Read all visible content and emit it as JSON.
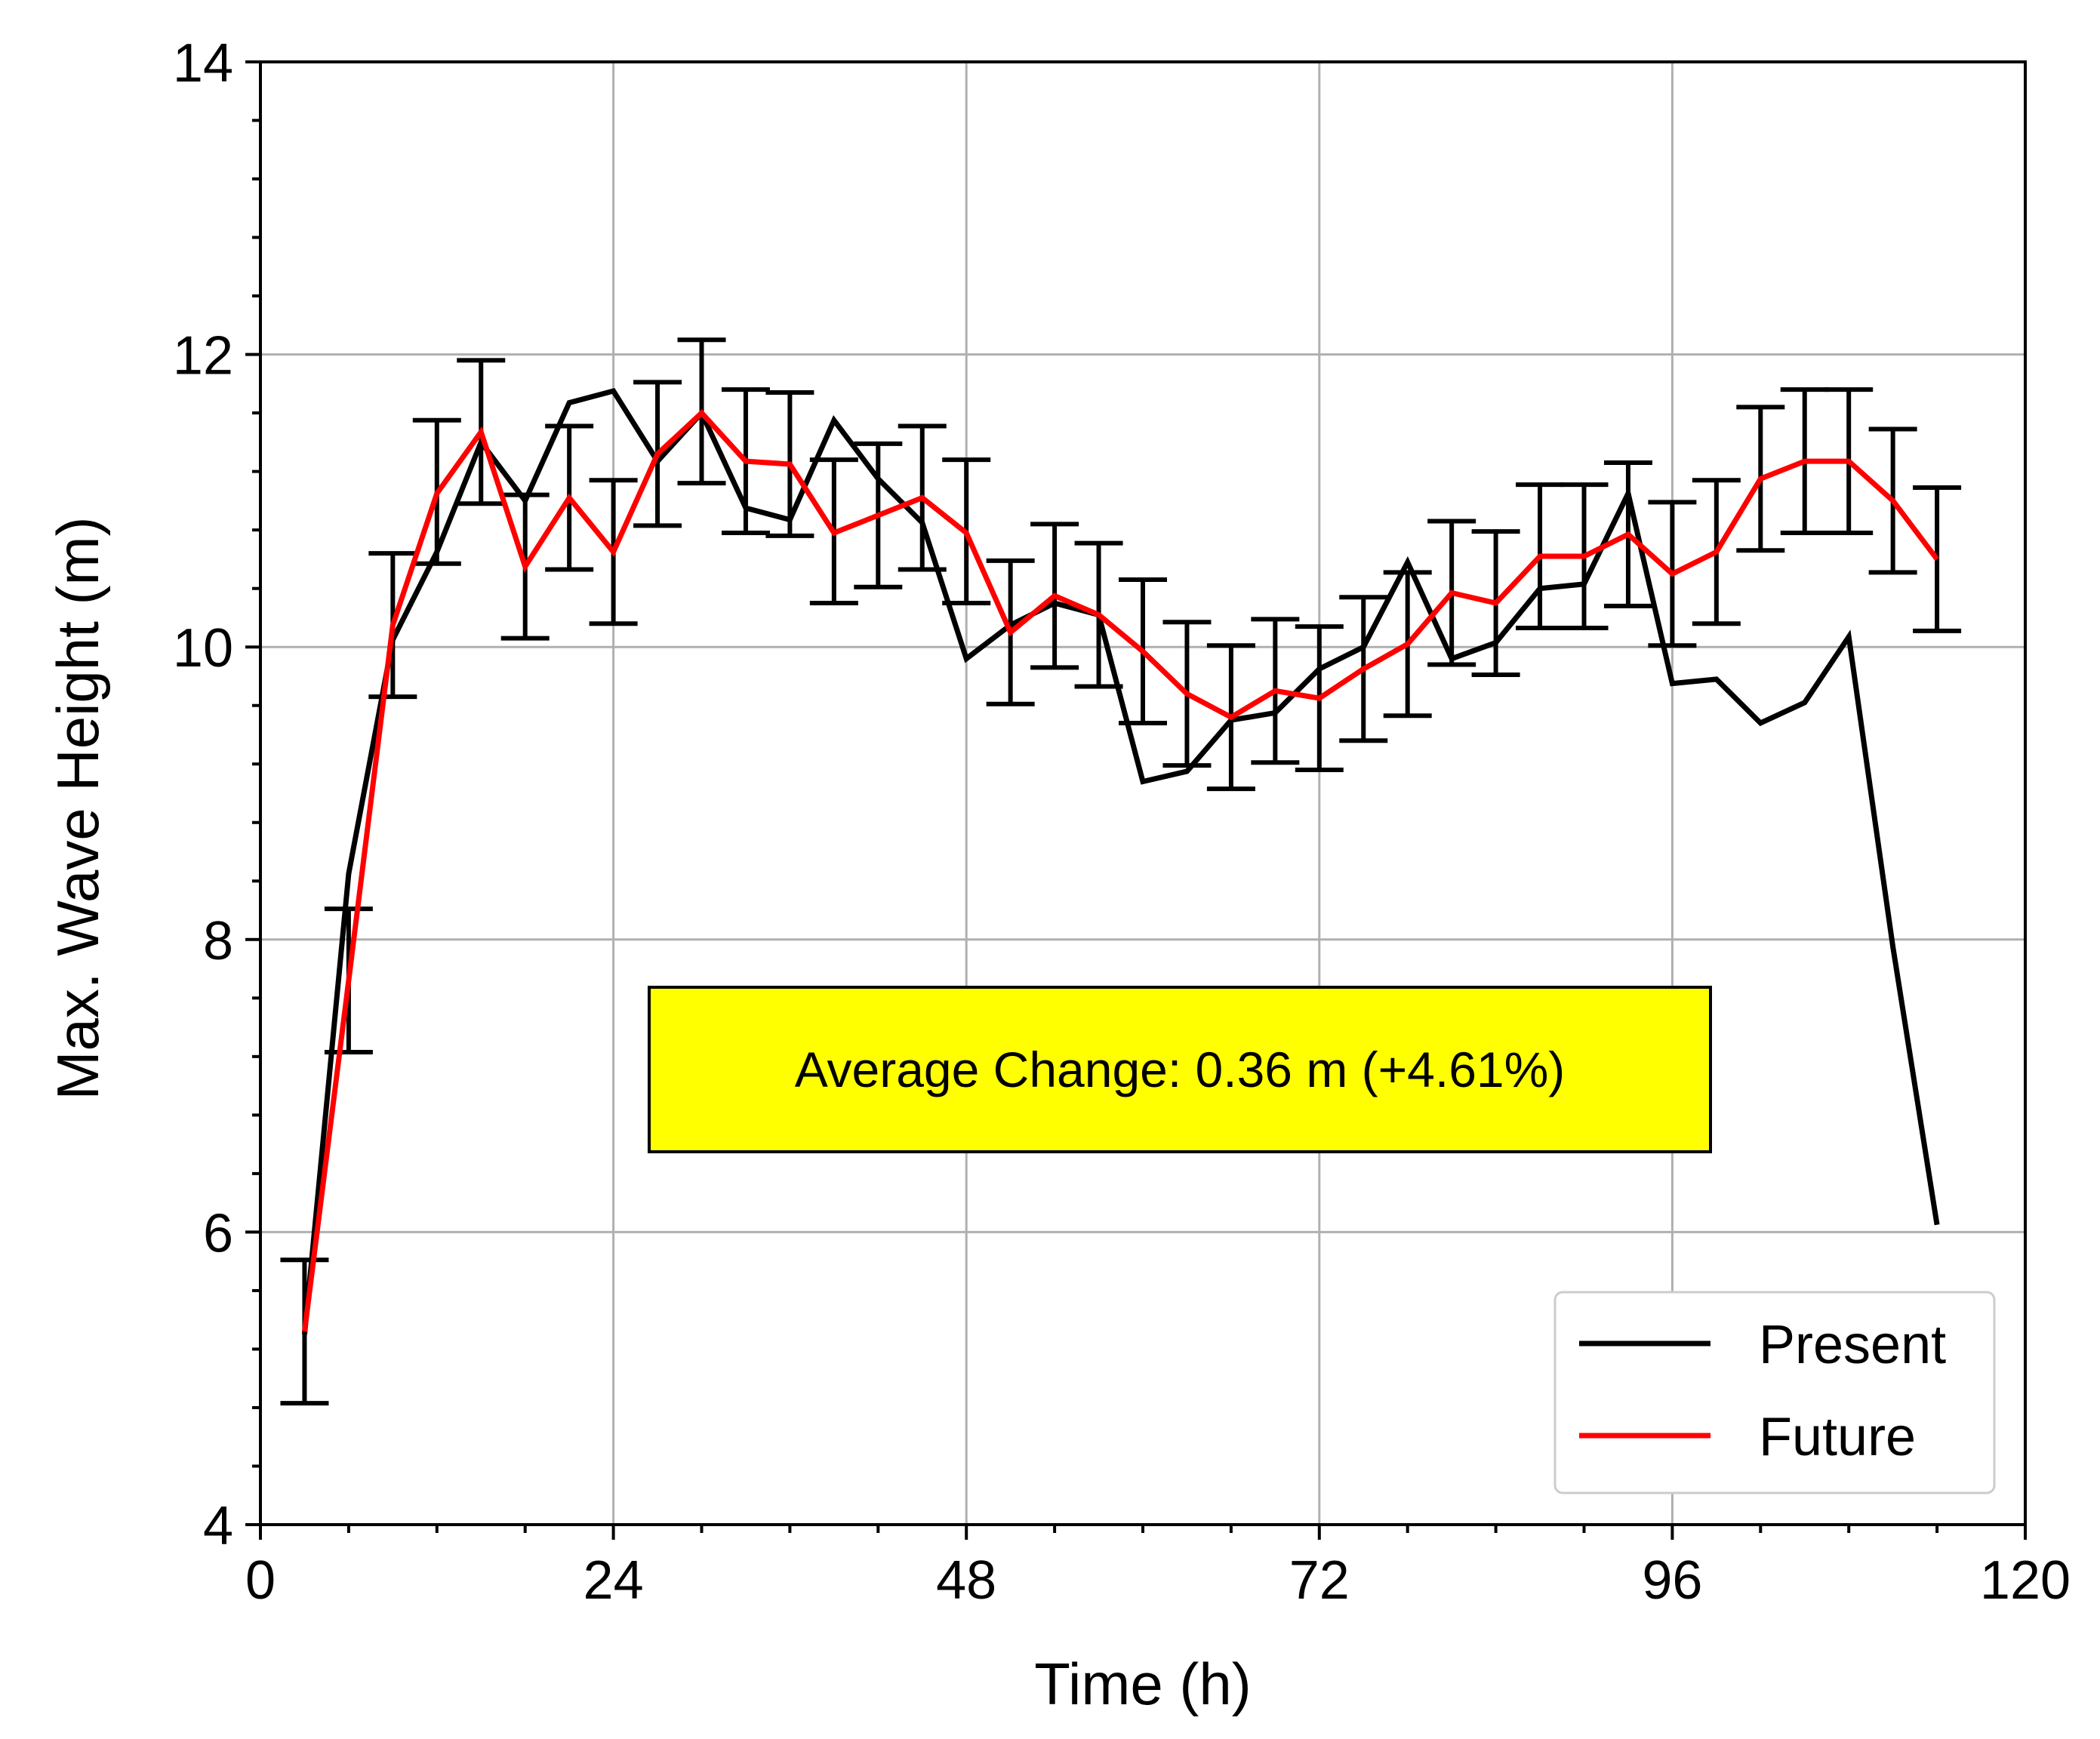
{
  "chart_data": {
    "type": "line",
    "title": "",
    "xlabel": "Time (h)",
    "ylabel": "Max. Wave Height (m)",
    "xlim": [
      0,
      120
    ],
    "ylim": [
      4,
      14
    ],
    "xticks": [
      0,
      24,
      48,
      72,
      96,
      120
    ],
    "yticks": [
      4,
      6,
      8,
      10,
      12,
      14
    ],
    "grid": true,
    "legend_position": "bottom-right",
    "annotation": "Average Change: 0.36 m (+4.61%)",
    "x": [
      3,
      6,
      9,
      12,
      15,
      18,
      21,
      24,
      27,
      30,
      33,
      36,
      39,
      42,
      45,
      48,
      51,
      54,
      57,
      60,
      63,
      66,
      69,
      72,
      75,
      78,
      81,
      84,
      87,
      90,
      93,
      96,
      99,
      102,
      105,
      108,
      111,
      114
    ],
    "series": [
      {
        "name": "Present",
        "color": "#000000",
        "values": [
          5.3,
          8.45,
          10.05,
          10.65,
          11.4,
          11.0,
          11.67,
          11.75,
          11.27,
          11.6,
          10.95,
          10.87,
          11.55,
          11.15,
          10.85,
          9.92,
          10.15,
          10.3,
          10.22,
          9.08,
          9.15,
          9.5,
          9.55,
          9.85,
          10.0,
          10.58,
          9.92,
          10.03,
          10.4,
          10.43,
          11.05,
          9.75,
          9.78,
          9.48,
          9.62,
          10.07,
          7.95,
          6.05
        ]
      },
      {
        "name": "Future",
        "color": "#ff0000",
        "values": [
          5.32,
          7.72,
          10.15,
          11.05,
          11.47,
          10.55,
          11.02,
          10.65,
          11.32,
          11.6,
          11.27,
          11.25,
          10.78,
          10.9,
          11.02,
          10.78,
          10.1,
          10.35,
          10.22,
          9.97,
          9.68,
          9.52,
          9.7,
          9.65,
          9.85,
          10.02,
          10.37,
          10.3,
          10.62,
          10.62,
          10.77,
          10.5,
          10.65,
          11.15,
          11.27,
          11.27,
          11.0,
          10.6
        ]
      }
    ],
    "error_bars": {
      "series": "Future",
      "x": [
        3,
        6,
        9,
        12,
        15,
        18,
        21,
        24,
        27,
        30,
        33,
        36,
        39,
        42,
        45,
        48,
        51,
        54,
        57,
        60,
        63,
        66,
        69,
        72,
        75,
        78,
        81,
        84,
        87,
        90,
        93,
        96,
        99,
        102,
        105,
        108,
        111,
        114
      ],
      "lower": [
        4.83,
        7.23,
        9.66,
        10.57,
        10.98,
        10.06,
        10.53,
        10.16,
        10.83,
        11.12,
        10.78,
        10.76,
        10.3,
        10.41,
        10.53,
        10.3,
        9.61,
        9.86,
        9.73,
        9.48,
        9.19,
        9.03,
        9.21,
        9.16,
        9.36,
        9.53,
        9.88,
        9.81,
        10.13,
        10.13,
        10.28,
        10.01,
        10.16,
        10.66,
        10.78,
        10.78,
        10.51,
        10.11
      ],
      "upper": [
        5.81,
        8.21,
        10.64,
        11.55,
        11.96,
        11.04,
        11.51,
        11.14,
        11.81,
        12.1,
        11.76,
        11.74,
        11.28,
        11.39,
        11.51,
        11.28,
        10.59,
        10.84,
        10.71,
        10.46,
        10.17,
        10.01,
        10.19,
        10.14,
        10.34,
        10.51,
        10.86,
        10.79,
        11.11,
        11.11,
        11.26,
        10.99,
        11.14,
        11.64,
        11.76,
        11.76,
        11.49,
        11.09
      ]
    }
  }
}
